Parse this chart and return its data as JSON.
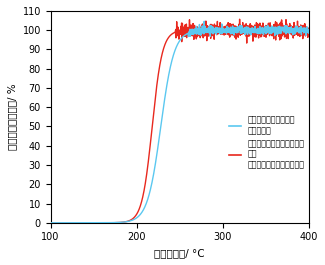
{
  "title": "",
  "xlabel": "反応温度　/ °C",
  "ylabel": "炭化水素浄化率　/ %",
  "xlim": [
    100,
    400
  ],
  "ylim": [
    0,
    110
  ],
  "xticks": [
    100,
    200,
    300,
    400
  ],
  "yticks": [
    0,
    10,
    20,
    30,
    40,
    50,
    60,
    70,
    80,
    90,
    100,
    110
  ],
  "legend1_label": "白金－パラジウム触媒\n（含浸法）",
  "legend2_label": "白金－パラジウムナノ粒子\n触媒\n（表面ポリオール還元法）",
  "color_cyan": "#5BC8F0",
  "color_red": "#E8281E",
  "background": "#FFFFFF"
}
